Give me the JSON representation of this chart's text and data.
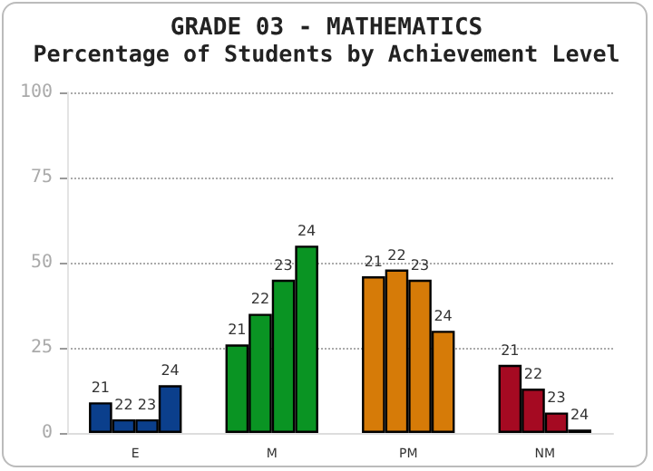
{
  "chart_data": {
    "type": "bar",
    "title": "GRADE 03 - MATHEMATICS",
    "subtitle": "Percentage of Students by Achievement Level",
    "categories": [
      "E",
      "M",
      "PM",
      "NM"
    ],
    "series": [
      {
        "name": "21",
        "colors": [
          "#0b3f8c",
          "#0a9423",
          "#d67b08",
          "#a50a22"
        ],
        "values": [
          9,
          26,
          46,
          20
        ]
      },
      {
        "name": "22",
        "colors": [
          "#0b3f8c",
          "#0a9423",
          "#d67b08",
          "#a50a22"
        ],
        "values": [
          4,
          35,
          48,
          13
        ]
      },
      {
        "name": "23",
        "colors": [
          "#0b3f8c",
          "#0a9423",
          "#d67b08",
          "#a50a22"
        ],
        "values": [
          4,
          45,
          45,
          6
        ]
      },
      {
        "name": "24",
        "colors": [
          "#0b3f8c",
          "#0a9423",
          "#d67b08",
          "#a50a22"
        ],
        "values": [
          14,
          55,
          30,
          1
        ]
      }
    ],
    "ylim": [
      0,
      100
    ],
    "yticks": [
      0,
      25,
      50,
      75,
      100
    ],
    "grid": "y",
    "line_style": "dotted",
    "legend": false
  }
}
